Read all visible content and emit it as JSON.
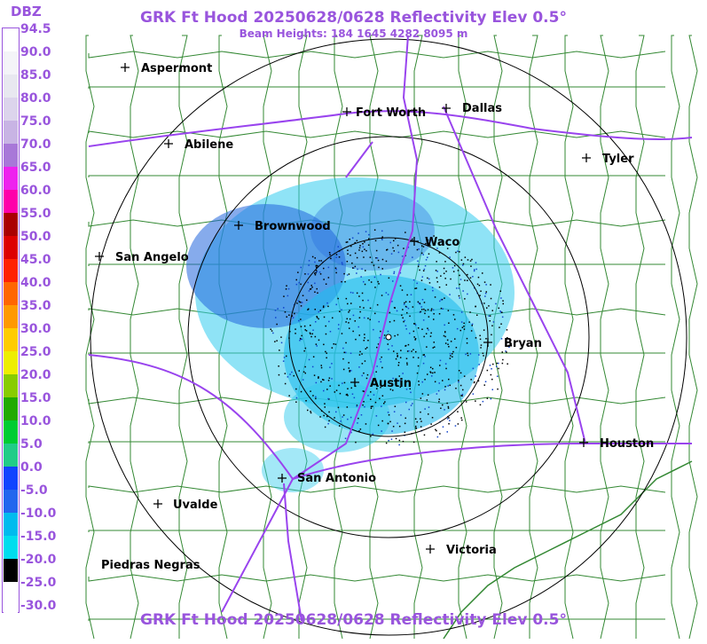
{
  "header": {
    "title": "GRK Ft Hood 20250628/0628 Reflectivity Elev 0.5°",
    "subtitle": "Beam Heights: 184 1645 4282 8095 m",
    "bottom_title": "GRK Ft Hood 20250628/0628 Reflectivity Elev 0.5°"
  },
  "legend": {
    "unit": "DBZ",
    "ticks": [
      "94.5",
      "90.0",
      "85.0",
      "80.0",
      "75.0",
      "70.0",
      "65.0",
      "60.0",
      "55.0",
      "50.0",
      "45.0",
      "40.0",
      "35.0",
      "30.0",
      "25.0",
      "20.0",
      "15.0",
      "10.0",
      "5.0",
      "0.0",
      "-5.0",
      "-10.0",
      "-15.0",
      "-20.0",
      "-25.0",
      "-30.0"
    ],
    "colors": [
      "#ffffff",
      "#f4f4f8",
      "#e8e8f0",
      "#dcd4ec",
      "#c8b4e4",
      "#a878d8",
      "#ee22ee",
      "#ff00aa",
      "#aa0000",
      "#dd0000",
      "#ff2200",
      "#ff6600",
      "#ff9900",
      "#ffcc00",
      "#eeee00",
      "#88cc00",
      "#22aa00",
      "#00cc33",
      "#22cc88",
      "#1144ff",
      "#2266ee",
      "#00bbee",
      "#00ddee",
      "#000000",
      "#ffffff",
      "#ffffff"
    ]
  },
  "cities": [
    {
      "name": "Aspermont",
      "id": "aspermont"
    },
    {
      "name": "Fort Worth",
      "id": "fort-worth"
    },
    {
      "name": "Dallas",
      "id": "dallas"
    },
    {
      "name": "Abilene",
      "id": "abilene"
    },
    {
      "name": "Tyler",
      "id": "tyler"
    },
    {
      "name": "Brownwood",
      "id": "brownwood"
    },
    {
      "name": "Waco",
      "id": "waco"
    },
    {
      "name": "San Angelo",
      "id": "san-angelo"
    },
    {
      "name": "Bryan",
      "id": "bryan"
    },
    {
      "name": "Austin",
      "id": "austin"
    },
    {
      "name": "Houston",
      "id": "houston"
    },
    {
      "name": "San Antonio",
      "id": "san-antonio"
    },
    {
      "name": "Uvalde",
      "id": "uvalde"
    },
    {
      "name": "Victoria",
      "id": "victoria"
    },
    {
      "name": "Piedras Negras",
      "id": "piedras-negras"
    }
  ],
  "colors": {
    "accent": "#9955dd",
    "county_lines": "#338833",
    "highways": "#9944ee",
    "echo_light": "#33ccee",
    "echo_medium": "#2266dd",
    "echo_low": "#000000"
  }
}
